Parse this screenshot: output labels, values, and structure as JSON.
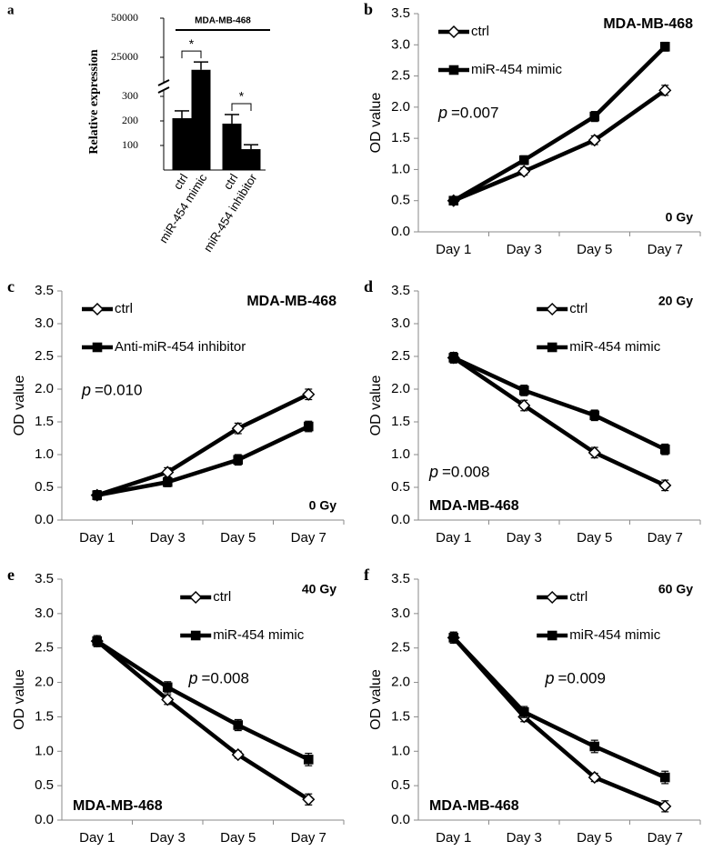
{
  "chart_data": [
    {
      "type": "bar",
      "panel_label": "a",
      "title": "MDA-MB-468",
      "y_label": "Relative expression",
      "categories": [
        "ctrl",
        "miR-454 mimic",
        "ctrl",
        "miR-454 inhibitor"
      ],
      "values": [
        211,
        17000,
        189,
        85
      ],
      "errors": [
        30,
        5000,
        37,
        18
      ],
      "color": "#000000",
      "ylim": [
        0,
        50000
      ],
      "yticks": [
        100,
        200,
        300,
        25000,
        50000
      ],
      "axis_break": true,
      "annotations": [
        "*",
        "*"
      ]
    },
    {
      "type": "line",
      "panel_label": "b",
      "title": "MDA-MB-468",
      "title_corner": "upper right",
      "annotation": "0 Gy",
      "annotation_corner": "lower right",
      "p_label": "p",
      "p_text": "=0.007",
      "p_corner": "upper left",
      "y_label": "OD value",
      "categories": [
        "Day 1",
        "Day 3",
        "Day 5",
        "Day 7"
      ],
      "legend": "upper left",
      "ylim": [
        0,
        3.5
      ],
      "yticks": [
        {
          "value": 0,
          "label": "0.0"
        },
        0.5,
        {
          "value": 1,
          "label": "1.0"
        },
        1.5,
        {
          "value": 2,
          "label": "2.0"
        },
        2.5,
        {
          "value": 3,
          "label": "3.0"
        },
        3.5
      ],
      "series": [
        {
          "name": "ctrl",
          "color": "#000000",
          "marker": "diamond",
          "marker_fill": "#ffffff",
          "values": [
            0.5,
            0.97,
            1.47,
            2.27
          ],
          "errors": [
            0.06,
            0.06,
            0.07,
            0.08
          ]
        },
        {
          "name": "miR-454 mimic",
          "color": "#000000",
          "marker": "square",
          "marker_fill": "#000000",
          "values": [
            0.5,
            1.15,
            1.85,
            2.97
          ],
          "errors": [
            0.06,
            0.07,
            0.08,
            0.07
          ]
        }
      ]
    },
    {
      "type": "line",
      "panel_label": "c",
      "title": "MDA-MB-468",
      "title_corner": "upper right",
      "annotation": "0 Gy",
      "annotation_corner": "lower right",
      "p_label": "p",
      "p_text": "=0.010",
      "p_corner": "upper left",
      "y_label": "OD value",
      "categories": [
        "Day 1",
        "Day 3",
        "Day 5",
        "Day 7"
      ],
      "legend": "upper left",
      "ylim": [
        0,
        3.5
      ],
      "yticks": [
        {
          "value": 0,
          "label": "0.0"
        },
        0.5,
        {
          "value": 1,
          "label": "1.0"
        },
        1.5,
        {
          "value": 2,
          "label": "2.0"
        },
        2.5,
        {
          "value": 3,
          "label": "3.0"
        },
        3.5
      ],
      "series": [
        {
          "name": "ctrl",
          "color": "#000000",
          "marker": "diamond",
          "marker_fill": "#ffffff",
          "values": [
            0.38,
            0.73,
            1.4,
            1.92
          ],
          "errors": [
            0.07,
            0.07,
            0.08,
            0.08
          ]
        },
        {
          "name": "Anti-miR-454 inhibitor",
          "color": "#000000",
          "marker": "square",
          "marker_fill": "#000000",
          "values": [
            0.38,
            0.58,
            0.92,
            1.43
          ],
          "errors": [
            0.07,
            0.07,
            0.08,
            0.08
          ]
        }
      ]
    },
    {
      "type": "line",
      "panel_label": "d",
      "title": "MDA-MB-468",
      "title_corner": "lower left",
      "annotation": "20 Gy",
      "annotation_corner": "upper right",
      "p_label": "p",
      "p_text": "=0.008",
      "p_corner": "lower left",
      "y_label": "OD value",
      "categories": [
        "Day 1",
        "Day 3",
        "Day 5",
        "Day 7"
      ],
      "legend": "upper center",
      "ylim": [
        0,
        3.5
      ],
      "yticks": [
        {
          "value": 0,
          "label": "0.0"
        },
        0.5,
        {
          "value": 1,
          "label": "1.0"
        },
        1.5,
        {
          "value": 2,
          "label": "2.0"
        },
        2.5,
        {
          "value": 3,
          "label": "3.0"
        },
        3.5
      ],
      "series": [
        {
          "name": "ctrl",
          "color": "#000000",
          "marker": "diamond",
          "marker_fill": "#ffffff",
          "values": [
            2.48,
            1.75,
            1.03,
            0.53
          ],
          "errors": [
            0.08,
            0.08,
            0.08,
            0.08
          ]
        },
        {
          "name": "miR-454 mimic",
          "color": "#000000",
          "marker": "square",
          "marker_fill": "#000000",
          "values": [
            2.48,
            1.98,
            1.6,
            1.08
          ],
          "errors": [
            0.08,
            0.08,
            0.08,
            0.08
          ]
        }
      ]
    },
    {
      "type": "line",
      "panel_label": "e",
      "title": "MDA-MB-468",
      "title_corner": "lower left",
      "annotation": "40 Gy",
      "annotation_corner": "upper right",
      "p_label": "p",
      "p_text": "=0.008",
      "p_corner": "upper center",
      "y_label": "OD value",
      "categories": [
        "Day 1",
        "Day 3",
        "Day 5",
        "Day 7"
      ],
      "legend": "upper center",
      "ylim": [
        0,
        3.5
      ],
      "yticks": [
        {
          "value": 0,
          "label": "0.0"
        },
        0.5,
        {
          "value": 1,
          "label": "1.0"
        },
        1.5,
        {
          "value": 2,
          "label": "2.0"
        },
        2.5,
        {
          "value": 3,
          "label": "3.0"
        },
        3.5
      ],
      "series": [
        {
          "name": "ctrl",
          "color": "#000000",
          "marker": "diamond",
          "marker_fill": "#ffffff",
          "values": [
            2.6,
            1.75,
            0.95,
            0.3
          ],
          "errors": [
            0.08,
            0.07,
            0.05,
            0.08
          ]
        },
        {
          "name": "miR-454 mimic",
          "color": "#000000",
          "marker": "square",
          "marker_fill": "#000000",
          "values": [
            2.6,
            1.93,
            1.38,
            0.88
          ],
          "errors": [
            0.08,
            0.08,
            0.08,
            0.09
          ]
        }
      ]
    },
    {
      "type": "line",
      "panel_label": "f",
      "title": "MDA-MB-468",
      "title_corner": "lower left",
      "annotation": "60 Gy",
      "annotation_corner": "upper right",
      "p_label": "p",
      "p_text": "=0.009",
      "p_corner": "upper center",
      "y_label": "OD value",
      "categories": [
        "Day 1",
        "Day 3",
        "Day 5",
        "Day 7"
      ],
      "legend": "upper center",
      "ylim": [
        0,
        3.5
      ],
      "yticks": [
        {
          "value": 0,
          "label": "0.0"
        },
        0.5,
        {
          "value": 1,
          "label": "1.0"
        },
        1.5,
        {
          "value": 2,
          "label": "2.0"
        },
        2.5,
        {
          "value": 3,
          "label": "3.0"
        },
        3.5
      ],
      "series": [
        {
          "name": "ctrl",
          "color": "#000000",
          "marker": "diamond",
          "marker_fill": "#ffffff",
          "values": [
            2.65,
            1.5,
            0.62,
            0.2
          ],
          "errors": [
            0.08,
            0.07,
            0.06,
            0.08
          ]
        },
        {
          "name": "miR-454 mimic",
          "color": "#000000",
          "marker": "square",
          "marker_fill": "#000000",
          "values": [
            2.65,
            1.57,
            1.07,
            0.62
          ],
          "errors": [
            0.08,
            0.08,
            0.09,
            0.09
          ]
        }
      ]
    }
  ]
}
